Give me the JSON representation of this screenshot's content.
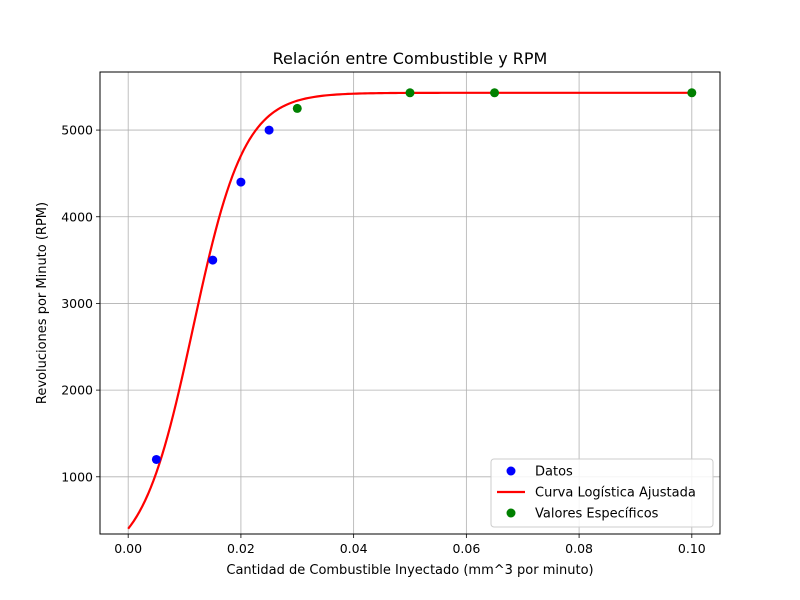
{
  "chart_data": {
    "type": "scatter",
    "title": "Relación entre Combustible y RPM",
    "xlabel": "Cantidad de Combustible Inyectado (mm^3 por minuto)",
    "ylabel": "Revoluciones por Minuto (RPM)",
    "xlim": [
      -0.005,
      0.105
    ],
    "ylim": [
      340,
      5670
    ],
    "xticks": [
      0.0,
      0.02,
      0.04,
      0.06,
      0.08,
      0.1
    ],
    "xtick_labels": [
      "0.00",
      "0.02",
      "0.04",
      "0.06",
      "0.08",
      "0.10"
    ],
    "yticks": [
      1000,
      2000,
      3000,
      4000,
      5000
    ],
    "ytick_labels": [
      "1000",
      "2000",
      "3000",
      "4000",
      "5000"
    ],
    "grid": true,
    "legend_position": "lower-right",
    "series": [
      {
        "name": "Datos",
        "kind": "scatter",
        "color": "#0000ff",
        "points": [
          [
            0.005,
            1200
          ],
          [
            0.015,
            3500
          ],
          [
            0.02,
            4400
          ],
          [
            0.025,
            5000
          ]
        ]
      },
      {
        "name": "Curva Logística Ajustada",
        "kind": "line",
        "color": "#ff0000",
        "model": {
          "L": 5430,
          "k": 220,
          "x0": 0.0115
        },
        "x_range": [
          0.0,
          0.1
        ]
      },
      {
        "name": "Valores Específicos",
        "kind": "scatter",
        "color": "#008000",
        "points": [
          [
            0.03,
            5250
          ],
          [
            0.05,
            5430
          ],
          [
            0.065,
            5430
          ],
          [
            0.1,
            5430
          ]
        ]
      }
    ]
  }
}
